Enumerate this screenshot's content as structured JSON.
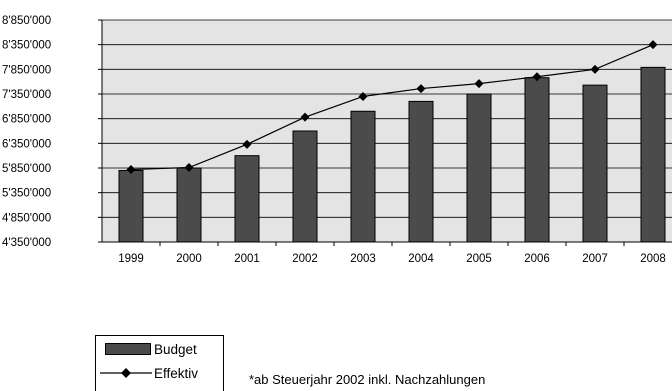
{
  "chart_data": {
    "type": "bar",
    "categories": [
      "1999",
      "2000",
      "2001",
      "2002",
      "2003",
      "2004",
      "2005",
      "2006",
      "2007",
      "2008"
    ],
    "series": [
      {
        "name": "Budget",
        "type": "bar",
        "values": [
          5800000,
          5850000,
          6100000,
          6600000,
          7000000,
          7200000,
          7350000,
          7680000,
          7530000,
          7890000
        ]
      },
      {
        "name": "Effektiv",
        "type": "line",
        "values": [
          5820000,
          5860000,
          6330000,
          6880000,
          7300000,
          7460000,
          7560000,
          7700000,
          7850000,
          8350000
        ]
      }
    ],
    "ylim": [
      4350000,
      8850000
    ],
    "y_ticks": [
      "4'350'000",
      "4'850'000",
      "5'350'000",
      "5'850'000",
      "6'350'000",
      "6'850'000",
      "7'350'000",
      "7'850'000",
      "8'350'000",
      "8'850'000"
    ],
    "grid": true,
    "legend_position": "bottom-left",
    "colors": {
      "bar": "#4b4b4b",
      "plot_background": "#e4e4e4",
      "line": "#000000"
    }
  },
  "legend": {
    "budget_label": "Budget",
    "effektiv_label": "Effektiv"
  },
  "footnote": "*ab Steuerjahr 2002 inkl. Nachzahlungen"
}
